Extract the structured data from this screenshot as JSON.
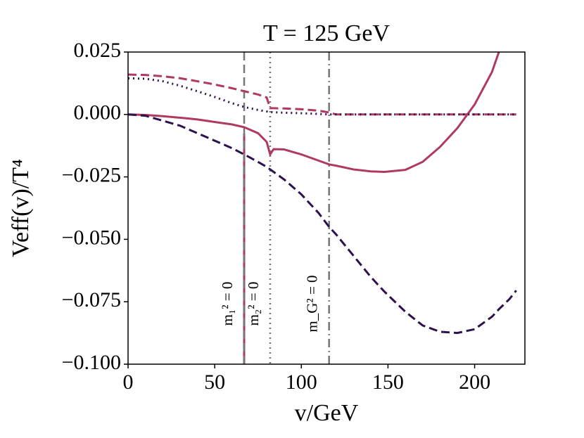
{
  "chart_data": {
    "type": "line",
    "title": "T = 125 GeV",
    "x_label": "v/GeV",
    "y_label": "Veff(v)/T⁴",
    "xlim": [
      0,
      229
    ],
    "ylim": [
      -0.1,
      0.025
    ],
    "xticks": [
      0,
      50,
      100,
      150,
      200
    ],
    "yticks": [
      {
        "value": 0.025,
        "label": "0.025"
      },
      {
        "value": 0,
        "label": "0.000"
      },
      {
        "value": -0.025,
        "label": "−0.025"
      },
      {
        "value": -0.05,
        "label": "−0.050"
      },
      {
        "value": -0.075,
        "label": "−0.075"
      },
      {
        "value": -0.1,
        "label": "−0.100"
      }
    ],
    "x": [
      0,
      10,
      20,
      30,
      40,
      50,
      60,
      67,
      75,
      80,
      82,
      84,
      90,
      100,
      110,
      116,
      120,
      130,
      140,
      148,
      160,
      170,
      180,
      190,
      200,
      210,
      214,
      220,
      224
    ],
    "series": [
      {
        "color": "#b03a5f",
        "style": "solid",
        "values": [
          0,
          -0.0002,
          -0.0007,
          -0.0013,
          -0.002,
          -0.003,
          -0.004,
          -0.0051,
          -0.0075,
          -0.011,
          -0.016,
          -0.0139,
          -0.014,
          -0.016,
          -0.0185,
          -0.02,
          -0.0205,
          -0.022,
          -0.0228,
          -0.023,
          -0.0222,
          -0.019,
          -0.013,
          -0.0055,
          0.004,
          0.017,
          0.025,
          null,
          null
        ]
      },
      {
        "color": "#b03a5f",
        "style": "dashed",
        "values": [
          0.016,
          0.0158,
          0.0153,
          0.0145,
          0.0133,
          0.012,
          0.0105,
          0.0093,
          0.008,
          0.0068,
          0.0025,
          0.0025,
          0.0024,
          0.0021,
          0.0015,
          0.0008,
          0,
          0,
          0,
          0,
          0,
          0,
          0,
          0,
          0,
          0,
          0,
          0,
          0
        ]
      },
      {
        "color": "#2d1250",
        "style": "dotted",
        "values": [
          0.0145,
          0.0143,
          0.0133,
          0.0115,
          0.0093,
          0.007,
          0.0045,
          0.003,
          0.0018,
          0.0012,
          0.001,
          0.0009,
          0.0007,
          0.0005,
          0.0002,
          0,
          0,
          0,
          0,
          0,
          0,
          0,
          0,
          0,
          0,
          0,
          0,
          0,
          0
        ]
      },
      {
        "color": "#2d1250",
        "style": "dashed",
        "values": [
          0,
          -0.0005,
          -0.0025,
          -0.0045,
          -0.0075,
          -0.0105,
          -0.0135,
          -0.016,
          -0.019,
          -0.021,
          -0.022,
          -0.023,
          -0.026,
          -0.032,
          -0.0395,
          -0.045,
          -0.048,
          -0.0565,
          -0.065,
          -0.071,
          -0.079,
          -0.0845,
          -0.087,
          -0.0875,
          -0.086,
          -0.081,
          -0.078,
          -0.074,
          -0.0705
        ]
      }
    ],
    "vlines": [
      {
        "x": 67,
        "label": "m₁² = 0",
        "color": "#777777",
        "style": "dashed"
      },
      {
        "x": 82,
        "label": "m₂² = 0",
        "color": "#777777",
        "style": "dotted"
      },
      {
        "x": 116,
        "label": "m_G² = 0",
        "color": "#777777",
        "style": "dashdot"
      }
    ],
    "vsegments": [
      {
        "x": 67,
        "from": -0.1,
        "to": -0.0077,
        "color": "#b03a5f"
      }
    ]
  }
}
